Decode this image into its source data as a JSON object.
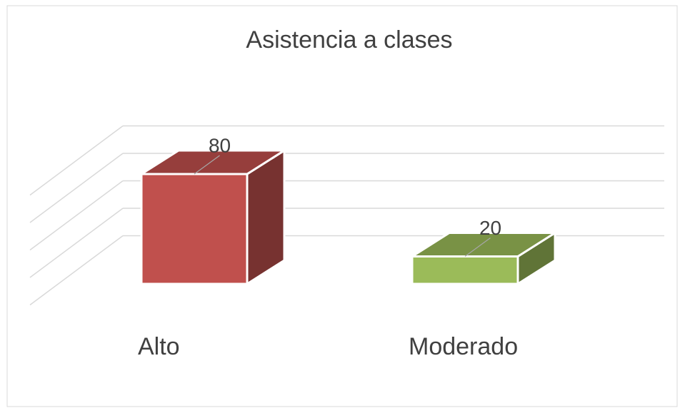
{
  "chart_data": {
    "type": "bar3d",
    "title": "Asistencia a clases",
    "categories": [
      "Alto",
      "Moderado"
    ],
    "values": [
      80,
      20
    ],
    "colors": [
      "#c0504d",
      "#9bbb59"
    ],
    "ylim": [
      0,
      100
    ],
    "yticks": [
      20,
      40,
      60,
      80,
      100
    ],
    "grid": true
  }
}
